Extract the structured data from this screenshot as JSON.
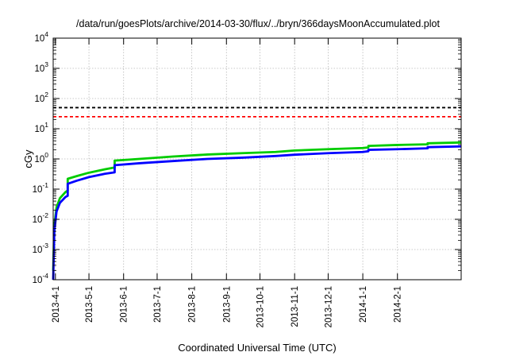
{
  "chart_data": {
    "type": "line",
    "title": "/data/run/goesPlots/archive/2014-03-30/flux/../bryn/366daysMoonAccumulated.plot",
    "xlabel": "Coordinated Universal Time (UTC)",
    "ylabel": "cGy",
    "y_scale": "log",
    "ylim": [
      0.0001,
      10000
    ],
    "xlim": [
      "2013-03-30",
      "2014-03-30"
    ],
    "grid": true,
    "legend": "none",
    "x_tick_labels": [
      "2013-4-1",
      "2013-5-1",
      "2013-6-1",
      "2013-7-1",
      "2013-8-1",
      "2013-9-1",
      "2013-10-1",
      "2013-11-1",
      "2013-12-1",
      "2014-1-1",
      "2014-2-1"
    ],
    "y_tick_labels": [
      {
        "base": "10",
        "exp": "-4"
      },
      {
        "base": "10",
        "exp": "-3"
      },
      {
        "base": "10",
        "exp": "-2"
      },
      {
        "base": "10",
        "exp": "-1"
      },
      {
        "base": "10",
        "exp": "0"
      },
      {
        "base": "10",
        "exp": "1"
      },
      {
        "base": "10",
        "exp": "2"
      },
      {
        "base": "10",
        "exp": "3"
      },
      {
        "base": "10",
        "exp": "4"
      }
    ],
    "reference_lines": [
      {
        "value": 50,
        "color": "#000000",
        "style": "dashed"
      },
      {
        "value": 25,
        "color": "#ff0000",
        "style": "dashed"
      }
    ],
    "series": [
      {
        "color": "#00cc00",
        "x": [
          "2013-03-30",
          "2013-03-31",
          "2013-04-02",
          "2013-04-05",
          "2013-04-10",
          "2013-04-12",
          "2013-04-12",
          "2013-04-20",
          "2013-05-01",
          "2013-05-15",
          "2013-05-24",
          "2013-05-24",
          "2013-06-15",
          "2013-07-15",
          "2013-08-15",
          "2013-09-15",
          "2013-10-15",
          "2013-11-01",
          "2013-12-01",
          "2014-01-01",
          "2014-01-06",
          "2014-01-06",
          "2014-02-01",
          "2014-02-28",
          "2014-02-28",
          "2014-03-30"
        ],
        "y": [
          0.0002,
          0.006,
          0.025,
          0.05,
          0.08,
          0.09,
          0.22,
          0.27,
          0.35,
          0.45,
          0.52,
          0.88,
          1.0,
          1.2,
          1.4,
          1.55,
          1.7,
          1.9,
          2.1,
          2.3,
          2.4,
          2.7,
          2.9,
          3.05,
          3.3,
          3.5
        ]
      },
      {
        "color": "#0000ff",
        "x": [
          "2013-03-30",
          "2013-03-31",
          "2013-04-02",
          "2013-04-05",
          "2013-04-10",
          "2013-04-12",
          "2013-04-12",
          "2013-04-20",
          "2013-05-01",
          "2013-05-15",
          "2013-05-24",
          "2013-05-24",
          "2013-06-15",
          "2013-07-15",
          "2013-08-15",
          "2013-09-15",
          "2013-10-15",
          "2013-11-01",
          "2013-12-01",
          "2014-01-01",
          "2014-01-06",
          "2014-01-06",
          "2014-02-01",
          "2014-02-28",
          "2014-02-28",
          "2014-03-30"
        ],
        "y": [
          0.0001,
          0.004,
          0.018,
          0.035,
          0.055,
          0.06,
          0.15,
          0.19,
          0.25,
          0.32,
          0.36,
          0.62,
          0.72,
          0.85,
          1.0,
          1.1,
          1.25,
          1.38,
          1.55,
          1.7,
          1.8,
          2.0,
          2.1,
          2.25,
          2.45,
          2.6
        ]
      }
    ]
  }
}
